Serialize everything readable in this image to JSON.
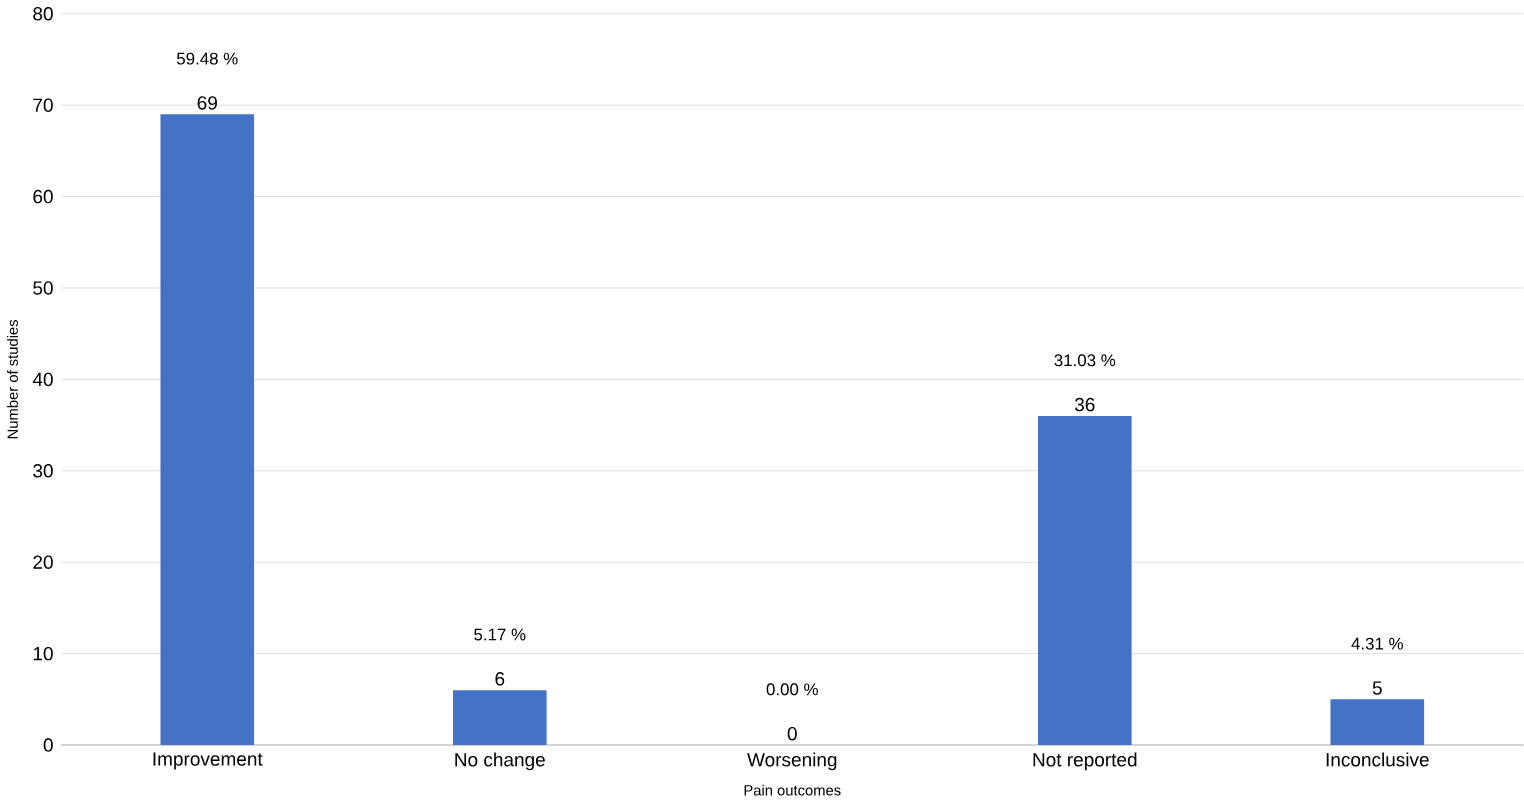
{
  "chart_data": {
    "type": "bar",
    "xlabel": "Pain outcomes",
    "ylabel": "Number of studies",
    "categories": [
      "Improvement",
      "No change",
      "Worsening",
      "Not reported",
      "Inconclusive"
    ],
    "values": [
      69,
      6,
      0,
      36,
      5
    ],
    "color": "#4472c4",
    "ylim": [
      0,
      80
    ],
    "yticks": [
      0,
      10,
      20,
      30,
      40,
      50,
      60,
      70,
      80
    ],
    "grid": "y",
    "data_labels": true,
    "annotations": [
      "59.48 %",
      "5.17 %",
      "0.00 %",
      "31.03 %",
      "4.31 %"
    ]
  }
}
